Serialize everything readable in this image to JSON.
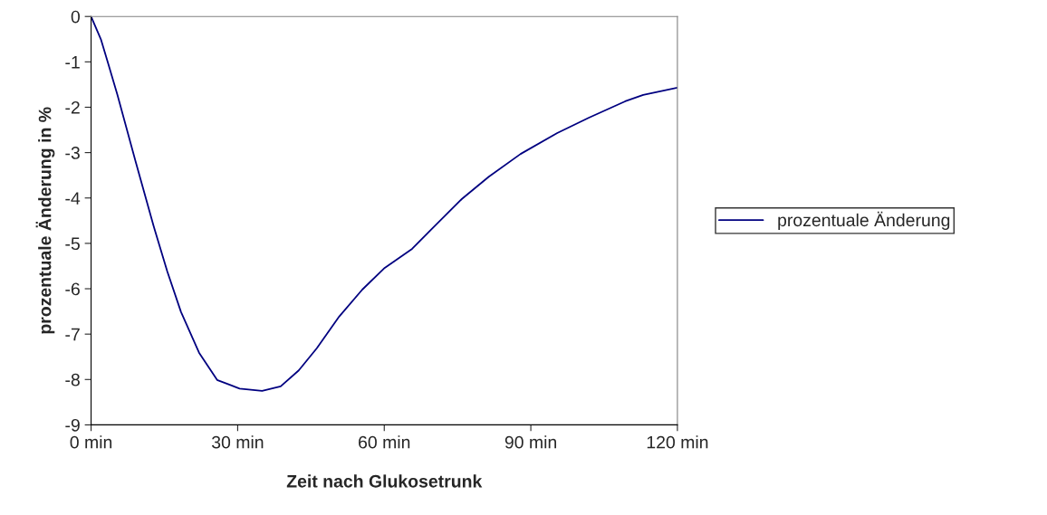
{
  "chart_data": {
    "type": "line",
    "xlabel": "Zeit nach Glukosetrunk",
    "ylabel": "prozentuale Änderung in %",
    "series": [
      {
        "name": "prozentuale Änderung",
        "color": "#000080",
        "x": [
          0,
          2,
          3.5,
          5.4,
          9.1,
          12.8,
          15.6,
          18.4,
          22.1,
          25.8,
          30.4,
          35,
          38.8,
          42.5,
          46.2,
          50.8,
          55.5,
          60.1,
          65.7,
          70.3,
          75.9,
          81.4,
          87.9,
          95.4,
          101.9,
          109.3,
          113,
          120
        ],
        "values": [
          0,
          -0.5,
          -1.04,
          -1.73,
          -3.19,
          -4.62,
          -5.62,
          -6.51,
          -7.41,
          -8.01,
          -8.2,
          -8.25,
          -8.15,
          -7.8,
          -7.31,
          -6.61,
          -6.02,
          -5.54,
          -5.12,
          -4.62,
          -4.02,
          -3.53,
          -3.03,
          -2.57,
          -2.23,
          -1.87,
          -1.73,
          -1.57
        ]
      }
    ],
    "xlim": [
      0,
      120
    ],
    "xticks": [
      {
        "value": 0,
        "label": "0 min"
      },
      {
        "value": 30,
        "label": "30 min"
      },
      {
        "value": 60,
        "label": "60 min"
      },
      {
        "value": 90,
        "label": "90 min"
      },
      {
        "value": 120,
        "label": "120 min"
      }
    ],
    "ylim": [
      -9,
      0
    ],
    "yticks": [
      -9,
      -8,
      -7,
      -6,
      -5,
      -4,
      -3,
      -2,
      -1,
      0
    ],
    "legend": "right",
    "grid": false
  }
}
